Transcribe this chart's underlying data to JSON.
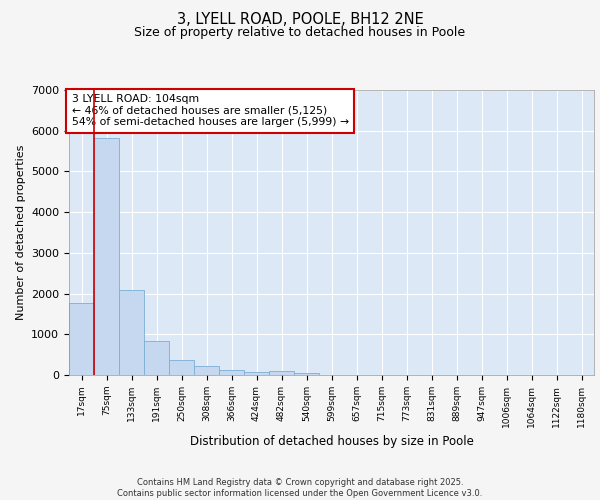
{
  "title_line1": "3, LYELL ROAD, POOLE, BH12 2NE",
  "title_line2": "Size of property relative to detached houses in Poole",
  "xlabel": "Distribution of detached houses by size in Poole",
  "ylabel": "Number of detached properties",
  "annotation_title": "3 LYELL ROAD: 104sqm",
  "annotation_line2": "← 46% of detached houses are smaller (5,125)",
  "annotation_line3": "54% of semi-detached houses are larger (5,999) →",
  "vline_x": 1.5,
  "bar_color": "#c5d8f0",
  "bar_edgecolor": "#7bafd4",
  "vline_color": "#cc0000",
  "plot_bg_color": "#dce8f5",
  "fig_bg_color": "#f5f5f5",
  "grid_color": "#ffffff",
  "annotation_box_edgecolor": "#cc0000",
  "annotation_box_facecolor": "#ffffff",
  "footer_line1": "Contains HM Land Registry data © Crown copyright and database right 2025.",
  "footer_line2": "Contains public sector information licensed under the Open Government Licence v3.0.",
  "categories": [
    "17sqm",
    "75sqm",
    "133sqm",
    "191sqm",
    "250sqm",
    "308sqm",
    "366sqm",
    "424sqm",
    "482sqm",
    "540sqm",
    "599sqm",
    "657sqm",
    "715sqm",
    "773sqm",
    "831sqm",
    "889sqm",
    "947sqm",
    "1006sqm",
    "1064sqm",
    "1122sqm",
    "1180sqm"
  ],
  "values": [
    1780,
    5820,
    2080,
    830,
    370,
    230,
    130,
    80,
    90,
    40,
    10,
    0,
    0,
    0,
    0,
    0,
    0,
    0,
    0,
    0,
    0
  ],
  "ylim": [
    0,
    7000
  ],
  "yticks": [
    0,
    1000,
    2000,
    3000,
    4000,
    5000,
    6000,
    7000
  ]
}
